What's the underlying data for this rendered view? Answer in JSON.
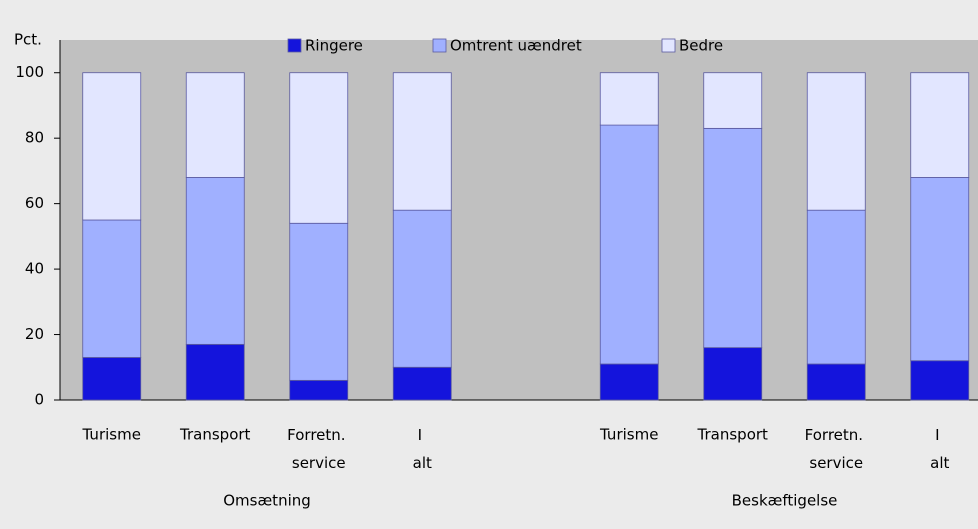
{
  "chart_data": {
    "type": "stacked_bar",
    "y_label": "Pct.",
    "categories": [
      "Turisme",
      "Transport",
      "Forretn. service",
      "I alt",
      null,
      "Turisme",
      "Transport",
      "Forretn. service",
      "I alt"
    ],
    "group_labels": [
      "Omsætning",
      "Beskæftigelse"
    ],
    "series": [
      {
        "name": "Ringere",
        "color": "#1414dc",
        "values": [
          13,
          17,
          6,
          10,
          null,
          11,
          16,
          11,
          12
        ]
      },
      {
        "name": "Omtrent uændret",
        "color": "#a0b0ff",
        "values": [
          42,
          51,
          48,
          48,
          null,
          73,
          67,
          47,
          56
        ]
      },
      {
        "name": "Bedre",
        "color": "#e2e6ff",
        "values": [
          45,
          32,
          46,
          42,
          null,
          16,
          17,
          42,
          32
        ]
      }
    ],
    "ylim": [
      0,
      110
    ],
    "yticks": [
      0,
      20,
      40,
      60,
      80,
      100
    ],
    "grid": false,
    "legend": "top"
  }
}
